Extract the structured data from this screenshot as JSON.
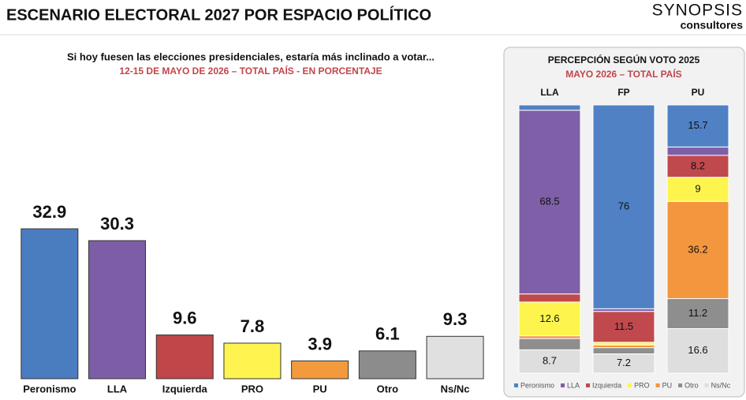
{
  "header": {
    "title": "ESCENARIO ELECTORAL 2027 POR ESPACIO POLÍTICO",
    "logo": "SYNOPSIS",
    "logo_sub": "consultores"
  },
  "chart_data": [
    {
      "type": "bar",
      "title": "Si hoy fuesen las elecciones presidenciales, estaría más inclinado a votar...",
      "subtitle": "12-15 DE MAYO DE 2026 – TOTAL PAÍS - EN PORCENTAJE",
      "categories": [
        "Peronismo",
        "LLA",
        "Izquierda",
        "PRO",
        "PU",
        "Otro",
        "Ns/Nc"
      ],
      "values": [
        32.9,
        30.3,
        9.6,
        7.8,
        3.9,
        6.1,
        9.3
      ],
      "colors": [
        "#4a7cc0",
        "#7d5ea6",
        "#c0464a",
        "#fff44f",
        "#f39a3d",
        "#8c8c8c",
        "#e0e0e0"
      ]
    },
    {
      "type": "stacked_bar",
      "title": "PERCEPCIÓN SEGÚN VOTO 2025",
      "subtitle": "MAYO 2026 – TOTAL PAÍS",
      "categories": [
        "LLA",
        "FP",
        "PU"
      ],
      "legend": "bottom",
      "series": [
        {
          "name": "Peronismo",
          "color": "#4f81c4",
          "values": [
            2.0,
            76.0,
            15.7
          ]
        },
        {
          "name": "LLA",
          "color": "#7f5fa8",
          "values": [
            68.5,
            1.0,
            3.1
          ]
        },
        {
          "name": "Izquierda",
          "color": "#c0494d",
          "values": [
            3.0,
            11.5,
            8.2
          ]
        },
        {
          "name": "PRO",
          "color": "#fdf54e",
          "values": [
            12.6,
            1.0,
            9.0
          ]
        },
        {
          "name": "PU",
          "color": "#f4963d",
          "values": [
            1.0,
            1.0,
            36.2
          ]
        },
        {
          "name": "Otro",
          "color": "#8e8e8e",
          "values": [
            4.2,
            2.3,
            11.2
          ]
        },
        {
          "name": "Ns/Nc",
          "color": "#dedede",
          "values": [
            8.7,
            7.2,
            16.6
          ]
        }
      ]
    }
  ]
}
